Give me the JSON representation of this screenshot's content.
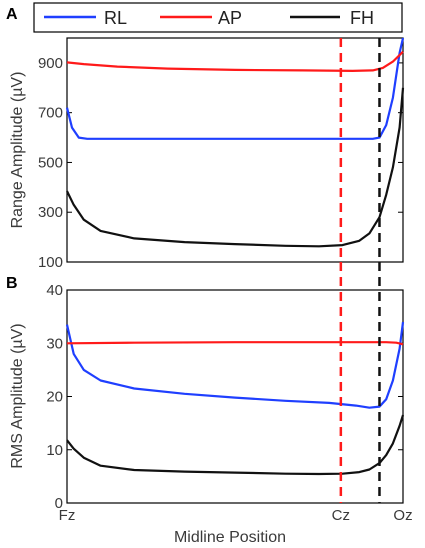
{
  "legend": {
    "entries": [
      {
        "name": "RL",
        "color": "#1f3fff"
      },
      {
        "name": "AP",
        "color": "#ff1a1a"
      },
      {
        "name": "FH",
        "color": "#111111"
      }
    ]
  },
  "panel_labels": {
    "a": "A",
    "b": "B"
  },
  "chart_data": [
    {
      "type": "line",
      "panel": "A",
      "ylabel": "Range  Amplitude (µV)",
      "xlabel": "",
      "ylim": [
        100,
        1000
      ],
      "yticks": [
        "100",
        "300",
        "500",
        "700",
        "900"
      ],
      "xlim": [
        0,
        1
      ],
      "series": [
        {
          "name": "RL",
          "color": "#1f3fff",
          "x": [
            0,
            0.015,
            0.035,
            0.06,
            0.15,
            0.3,
            0.5,
            0.7,
            0.85,
            0.91,
            0.93,
            0.95,
            0.97,
            0.99,
            1.0
          ],
          "y": [
            720,
            640,
            600,
            595,
            595,
            595,
            595,
            595,
            595,
            595,
            600,
            650,
            760,
            940,
            1000
          ]
        },
        {
          "name": "AP",
          "color": "#ff1a1a",
          "x": [
            0,
            0.05,
            0.15,
            0.3,
            0.5,
            0.7,
            0.85,
            0.91,
            0.94,
            0.97,
            1.0
          ],
          "y": [
            902,
            895,
            885,
            877,
            872,
            870,
            868,
            870,
            880,
            905,
            945
          ]
        },
        {
          "name": "FH",
          "color": "#111111",
          "x": [
            0,
            0.02,
            0.05,
            0.1,
            0.2,
            0.35,
            0.5,
            0.65,
            0.75,
            0.82,
            0.87,
            0.9,
            0.93,
            0.95,
            0.97,
            0.99,
            1.0
          ],
          "y": [
            385,
            330,
            270,
            225,
            195,
            180,
            172,
            165,
            163,
            168,
            185,
            215,
            280,
            370,
            480,
            640,
            800
          ]
        }
      ],
      "vlines": [
        {
          "x": 0.815,
          "color": "#ff1a1a",
          "style": "dashed"
        },
        {
          "x": 0.93,
          "color": "#111111",
          "style": "dashed"
        }
      ]
    },
    {
      "type": "line",
      "panel": "B",
      "ylabel": "RMS Amplitude (µV)",
      "xlabel": "Midline Position",
      "ylim": [
        0,
        40
      ],
      "yticks": [
        "0",
        "10",
        "20",
        "30",
        "40"
      ],
      "xlim": [
        0,
        1
      ],
      "xticks": [
        {
          "x": 0.0,
          "label": "Fz"
        },
        {
          "x": 0.815,
          "label": "Cz"
        },
        {
          "x": 1.0,
          "label": "Oz"
        }
      ],
      "series": [
        {
          "name": "RL",
          "color": "#1f3fff",
          "x": [
            0,
            0.02,
            0.05,
            0.1,
            0.2,
            0.35,
            0.5,
            0.65,
            0.78,
            0.86,
            0.9,
            0.93,
            0.95,
            0.97,
            0.99,
            1.0
          ],
          "y": [
            33.5,
            28,
            25,
            23,
            21.5,
            20.5,
            19.8,
            19.2,
            18.8,
            18.3,
            17.9,
            18.1,
            19.5,
            23,
            29,
            34
          ]
        },
        {
          "name": "AP",
          "color": "#ff1a1a",
          "x": [
            0,
            0.2,
            0.5,
            0.8,
            0.95,
            0.98,
            1.0
          ],
          "y": [
            30,
            30.1,
            30.2,
            30.2,
            30.2,
            30.1,
            29.8
          ]
        },
        {
          "name": "FH",
          "color": "#111111",
          "x": [
            0,
            0.02,
            0.05,
            0.1,
            0.2,
            0.35,
            0.5,
            0.65,
            0.75,
            0.82,
            0.87,
            0.9,
            0.93,
            0.95,
            0.97,
            0.99,
            1.0
          ],
          "y": [
            11.8,
            10.2,
            8.5,
            7.0,
            6.2,
            5.9,
            5.7,
            5.5,
            5.45,
            5.5,
            5.8,
            6.3,
            7.5,
            9.0,
            11.2,
            14.5,
            16.5
          ]
        }
      ],
      "vlines": [
        {
          "x": 0.815,
          "color": "#ff1a1a",
          "style": "dashed"
        },
        {
          "x": 0.93,
          "color": "#111111",
          "style": "dashed"
        }
      ]
    }
  ]
}
